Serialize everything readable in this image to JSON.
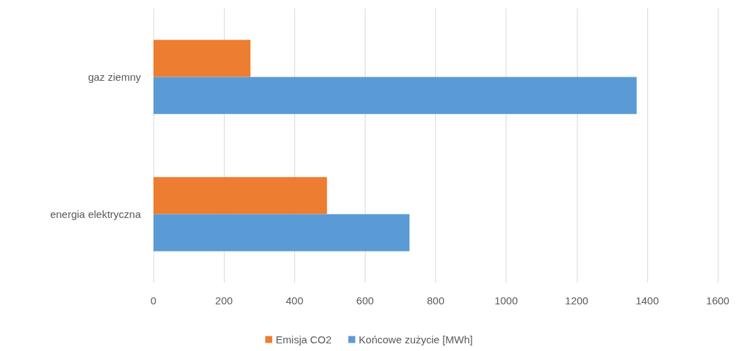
{
  "chart_data": {
    "type": "bar",
    "orientation": "horizontal",
    "categories": [
      "gaz ziemny",
      "energia elektryczna"
    ],
    "series": [
      {
        "name": "Emisja CO2",
        "color": "#ed7d31",
        "values": [
          275,
          492
        ]
      },
      {
        "name": "Końcowe zużycie [MWh]",
        "color": "#5b9bd5",
        "values": [
          1370,
          726
        ]
      }
    ],
    "xlim": [
      0,
      1600
    ],
    "xticks": [
      0,
      200,
      400,
      600,
      800,
      1000,
      1200,
      1400,
      1600
    ],
    "grid": "x",
    "legend": "bottom"
  }
}
